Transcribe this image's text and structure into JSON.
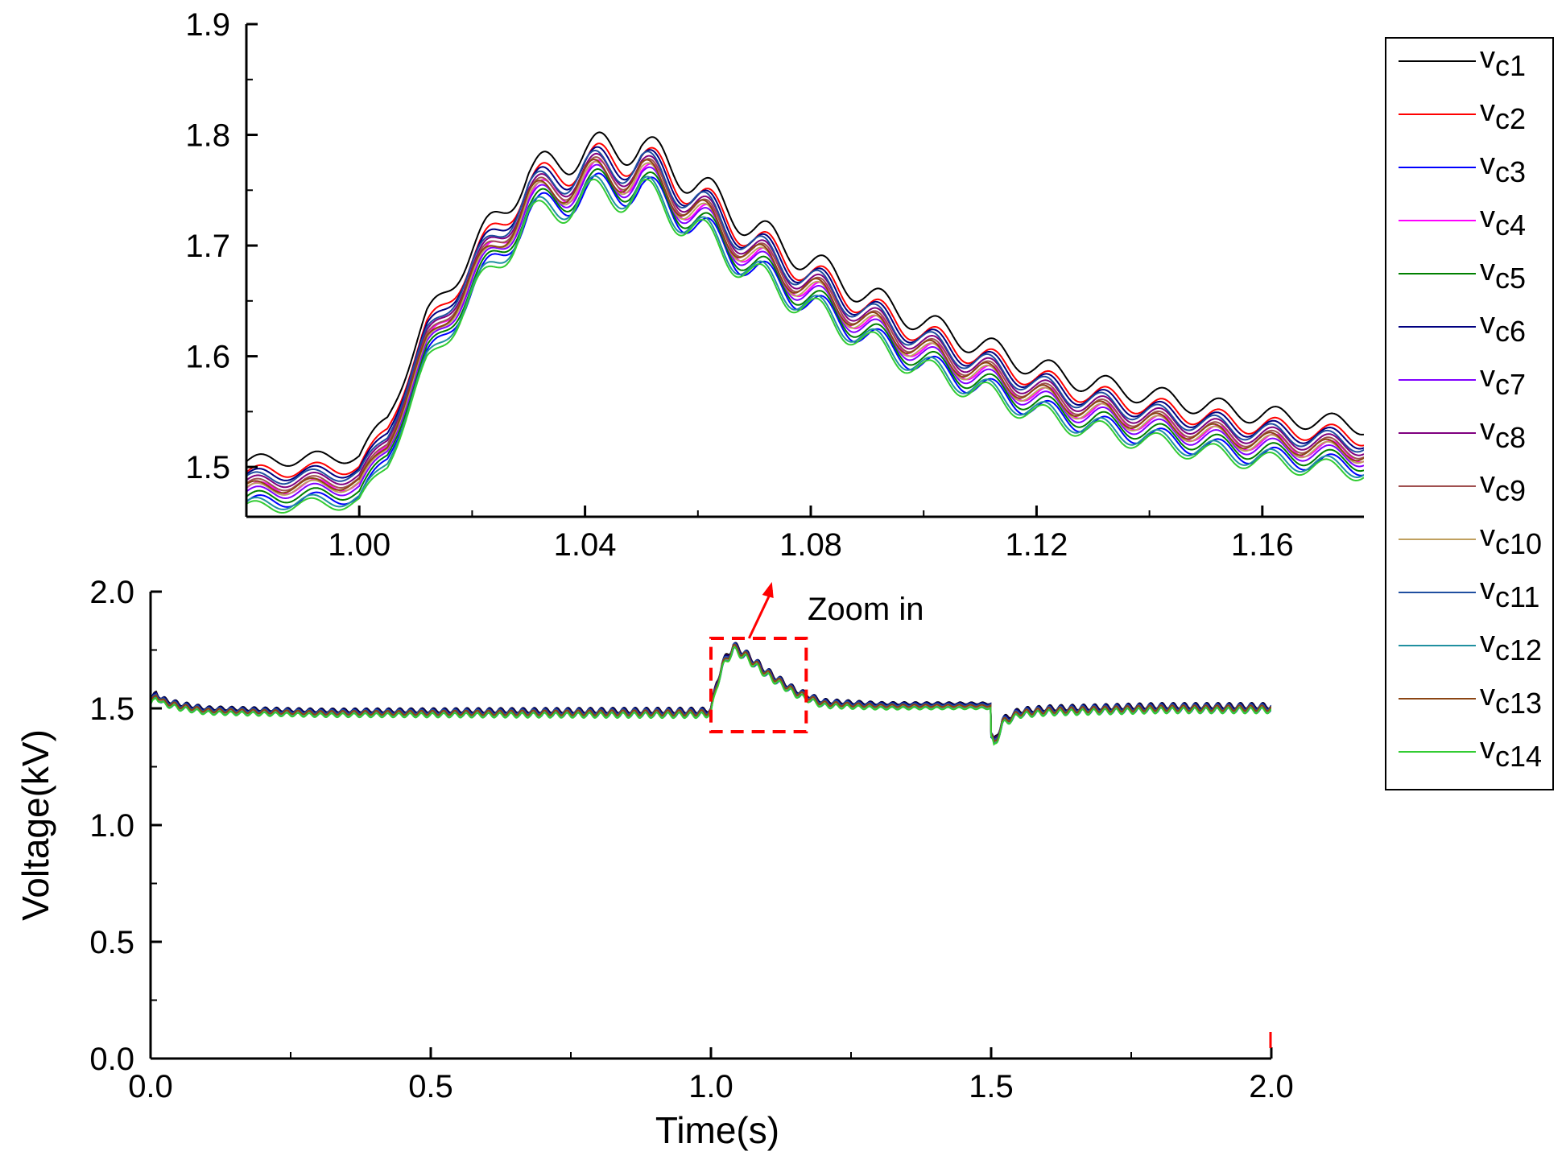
{
  "chart_data": [
    {
      "id": "zoom",
      "type": "line",
      "title": "",
      "xlabel": "",
      "ylabel": "",
      "xlim": [
        0.98,
        1.178
      ],
      "ylim": [
        1.455,
        1.9
      ],
      "xticks": [
        1.0,
        1.04,
        1.08,
        1.12,
        1.16
      ],
      "xtick_labels": [
        "1.00",
        "1.04",
        "1.08",
        "1.12",
        "1.16"
      ],
      "yticks": [
        1.5,
        1.6,
        1.7,
        1.8,
        1.9
      ],
      "ytick_labels": [
        "1.5",
        "1.6",
        "1.7",
        "1.8",
        "1.9"
      ],
      "oscillation_hz": 100,
      "series_offsets_kV": [
        0.025,
        0.015,
        -0.012,
        0.0,
        -0.008,
        0.012,
        -0.004,
        0.006,
        0.003,
        -0.001,
        0.009,
        -0.014,
        0.001,
        -0.017
      ],
      "envelope": {
        "x": [
          0.98,
          1.0,
          1.005,
          1.012,
          1.02,
          1.03,
          1.04,
          1.05,
          1.06,
          1.07,
          1.08,
          1.09,
          1.1,
          1.11,
          1.12,
          1.13,
          1.14,
          1.15,
          1.16,
          1.178
        ],
        "mean": [
          1.48,
          1.485,
          1.52,
          1.61,
          1.67,
          1.74,
          1.76,
          1.765,
          1.73,
          1.69,
          1.66,
          1.63,
          1.605,
          1.585,
          1.565,
          1.55,
          1.54,
          1.53,
          1.522,
          1.512
        ],
        "amplitude": [
          0.006,
          0.006,
          0.006,
          0.008,
          0.012,
          0.014,
          0.016,
          0.016,
          0.015,
          0.014,
          0.013,
          0.012,
          0.011,
          0.011,
          0.01,
          0.01,
          0.009,
          0.009,
          0.009,
          0.008
        ]
      }
    },
    {
      "id": "main",
      "type": "line",
      "title": "",
      "xlabel": "Time(s)",
      "ylabel": "Voltage(kV)",
      "xlim": [
        0.0,
        2.0
      ],
      "ylim": [
        0.0,
        2.0
      ],
      "xticks": [
        0.0,
        0.5,
        1.0,
        1.5,
        2.0
      ],
      "xtick_labels": [
        "0.0",
        "0.5",
        "1.0",
        "1.5",
        "2.0"
      ],
      "yticks": [
        0.0,
        0.5,
        1.0,
        1.5,
        2.0
      ],
      "ytick_labels": [
        "0.0",
        "0.5",
        "1.0",
        "1.5",
        "2.0"
      ],
      "oscillation_hz": 50,
      "series_offsets_kV": [
        0.012,
        0.008,
        -0.006,
        0.0,
        -0.004,
        0.01,
        -0.002,
        0.004,
        0.002,
        -0.001,
        0.006,
        -0.008,
        0.001,
        -0.01
      ],
      "envelope": {
        "x": [
          0.0,
          0.01,
          0.02,
          0.05,
          0.1,
          0.3,
          0.6,
          0.99,
          1.0,
          1.01,
          1.02,
          1.04,
          1.06,
          1.1,
          1.15,
          1.2,
          1.3,
          1.499,
          1.5,
          1.505,
          1.52,
          1.55,
          1.6,
          1.8,
          2.0
        ],
        "mean": [
          1.52,
          1.56,
          1.53,
          1.51,
          1.49,
          1.48,
          1.48,
          1.48,
          1.49,
          1.6,
          1.68,
          1.76,
          1.73,
          1.65,
          1.57,
          1.52,
          1.51,
          1.51,
          1.38,
          1.34,
          1.44,
          1.48,
          1.49,
          1.5,
          1.5
        ],
        "amplitude": [
          0.01,
          0.01,
          0.01,
          0.01,
          0.008,
          0.008,
          0.01,
          0.012,
          0.012,
          0.014,
          0.016,
          0.016,
          0.015,
          0.014,
          0.012,
          0.01,
          0.006,
          0.004,
          0.02,
          0.02,
          0.014,
          0.012,
          0.012,
          0.012,
          0.012
        ]
      },
      "annotation": {
        "label": "Zoom in",
        "box_x": [
          1.0,
          1.17
        ],
        "box_y": [
          1.4,
          1.8
        ],
        "color": "#ff0000"
      }
    }
  ],
  "legend": {
    "placement": "right",
    "entries": [
      {
        "main": "v",
        "sub": "c1",
        "color": "#000000"
      },
      {
        "main": "v",
        "sub": "c2",
        "color": "#ff0000"
      },
      {
        "main": "v",
        "sub": "c3",
        "color": "#0000ff"
      },
      {
        "main": "v",
        "sub": "c4",
        "color": "#ff00ff"
      },
      {
        "main": "v",
        "sub": "c5",
        "color": "#008000"
      },
      {
        "main": "v",
        "sub": "c6",
        "color": "#000080"
      },
      {
        "main": "v",
        "sub": "c7",
        "color": "#8000ff"
      },
      {
        "main": "v",
        "sub": "c8",
        "color": "#800080"
      },
      {
        "main": "v",
        "sub": "c9",
        "color": "#a05050"
      },
      {
        "main": "v",
        "sub": "c10",
        "color": "#c0a060"
      },
      {
        "main": "v",
        "sub": "c11",
        "color": "#1f4fa0"
      },
      {
        "main": "v",
        "sub": "c12",
        "color": "#2090a0"
      },
      {
        "main": "v",
        "sub": "c13",
        "color": "#8b4513"
      },
      {
        "main": "v",
        "sub": "c14",
        "color": "#33cc33"
      }
    ]
  }
}
